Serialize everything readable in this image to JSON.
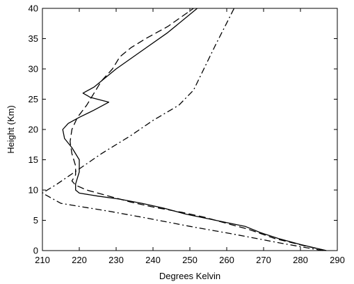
{
  "chart_data": {
    "type": "line",
    "title": "",
    "xlabel": "Degrees Kelvin",
    "ylabel": "Height (Km)",
    "xlim": [
      210,
      290
    ],
    "ylim": [
      0,
      40
    ],
    "x_ticks": [
      210,
      220,
      230,
      240,
      250,
      260,
      270,
      280,
      290
    ],
    "y_ticks": [
      0,
      5,
      10,
      15,
      20,
      25,
      30,
      35,
      40
    ],
    "x_tick_labels": [
      "210",
      "220",
      "230",
      "240",
      "250",
      "260",
      "270",
      "280",
      "290"
    ],
    "y_tick_labels": [
      "0",
      "5",
      "10",
      "15",
      "20",
      "25",
      "30",
      "35",
      "40"
    ],
    "grid": false,
    "legend": "none",
    "series": [
      {
        "style": "solid",
        "color": "#000000",
        "points": [
          [
            287,
            0
          ],
          [
            280,
            1
          ],
          [
            274,
            2
          ],
          [
            269,
            3
          ],
          [
            265,
            4
          ],
          [
            257,
            5
          ],
          [
            249,
            6
          ],
          [
            243,
            7
          ],
          [
            237,
            7.8
          ],
          [
            231,
            8.5
          ],
          [
            225,
            9
          ],
          [
            220,
            9.5
          ],
          [
            219,
            10
          ],
          [
            219,
            11
          ],
          [
            220,
            13
          ],
          [
            220,
            15
          ],
          [
            218,
            17
          ],
          [
            216,
            18.5
          ],
          [
            215.5,
            20
          ],
          [
            217,
            21
          ],
          [
            220,
            22
          ],
          [
            224,
            23.2
          ],
          [
            228,
            24.5
          ],
          [
            223,
            25.3
          ],
          [
            221,
            26
          ],
          [
            224,
            27
          ],
          [
            226,
            28
          ],
          [
            230,
            30
          ],
          [
            237,
            33
          ],
          [
            244,
            36
          ],
          [
            252,
            40
          ]
        ]
      },
      {
        "style": "dashed",
        "color": "#000000",
        "points": [
          [
            287,
            0
          ],
          [
            281,
            0.8
          ],
          [
            273,
            2
          ],
          [
            266,
            3.5
          ],
          [
            260,
            4.5
          ],
          [
            254,
            5.5
          ],
          [
            248,
            6.3
          ],
          [
            240,
            7.2
          ],
          [
            234,
            8
          ],
          [
            228,
            9
          ],
          [
            222,
            10
          ],
          [
            219,
            10.8
          ],
          [
            218,
            11.5
          ],
          [
            219,
            12.5
          ],
          [
            219,
            14
          ],
          [
            218,
            16
          ],
          [
            217.5,
            18
          ],
          [
            218,
            20
          ],
          [
            219.5,
            22
          ],
          [
            222,
            24
          ],
          [
            224,
            26
          ],
          [
            226,
            28
          ],
          [
            229,
            30
          ],
          [
            231,
            32
          ],
          [
            234,
            33.5
          ],
          [
            238,
            35
          ],
          [
            244,
            37
          ],
          [
            251,
            40
          ]
        ]
      },
      {
        "style": "dashdot",
        "color": "#000000",
        "points": [
          [
            286,
            0
          ],
          [
            275,
            1.2
          ],
          [
            262,
            2.7
          ],
          [
            250,
            4
          ],
          [
            238,
            5.4
          ],
          [
            228,
            6.5
          ],
          [
            220,
            7.3
          ],
          [
            215,
            7.8
          ],
          [
            210,
            9.5
          ],
          [
            214,
            11
          ],
          [
            220,
            13.5
          ],
          [
            226,
            16
          ],
          [
            234,
            19
          ],
          [
            240,
            21.5
          ],
          [
            247,
            24
          ],
          [
            251,
            26.5
          ],
          [
            253,
            29
          ],
          [
            255,
            31.5
          ],
          [
            257,
            34
          ],
          [
            259.5,
            37
          ],
          [
            262,
            40
          ]
        ]
      }
    ]
  }
}
